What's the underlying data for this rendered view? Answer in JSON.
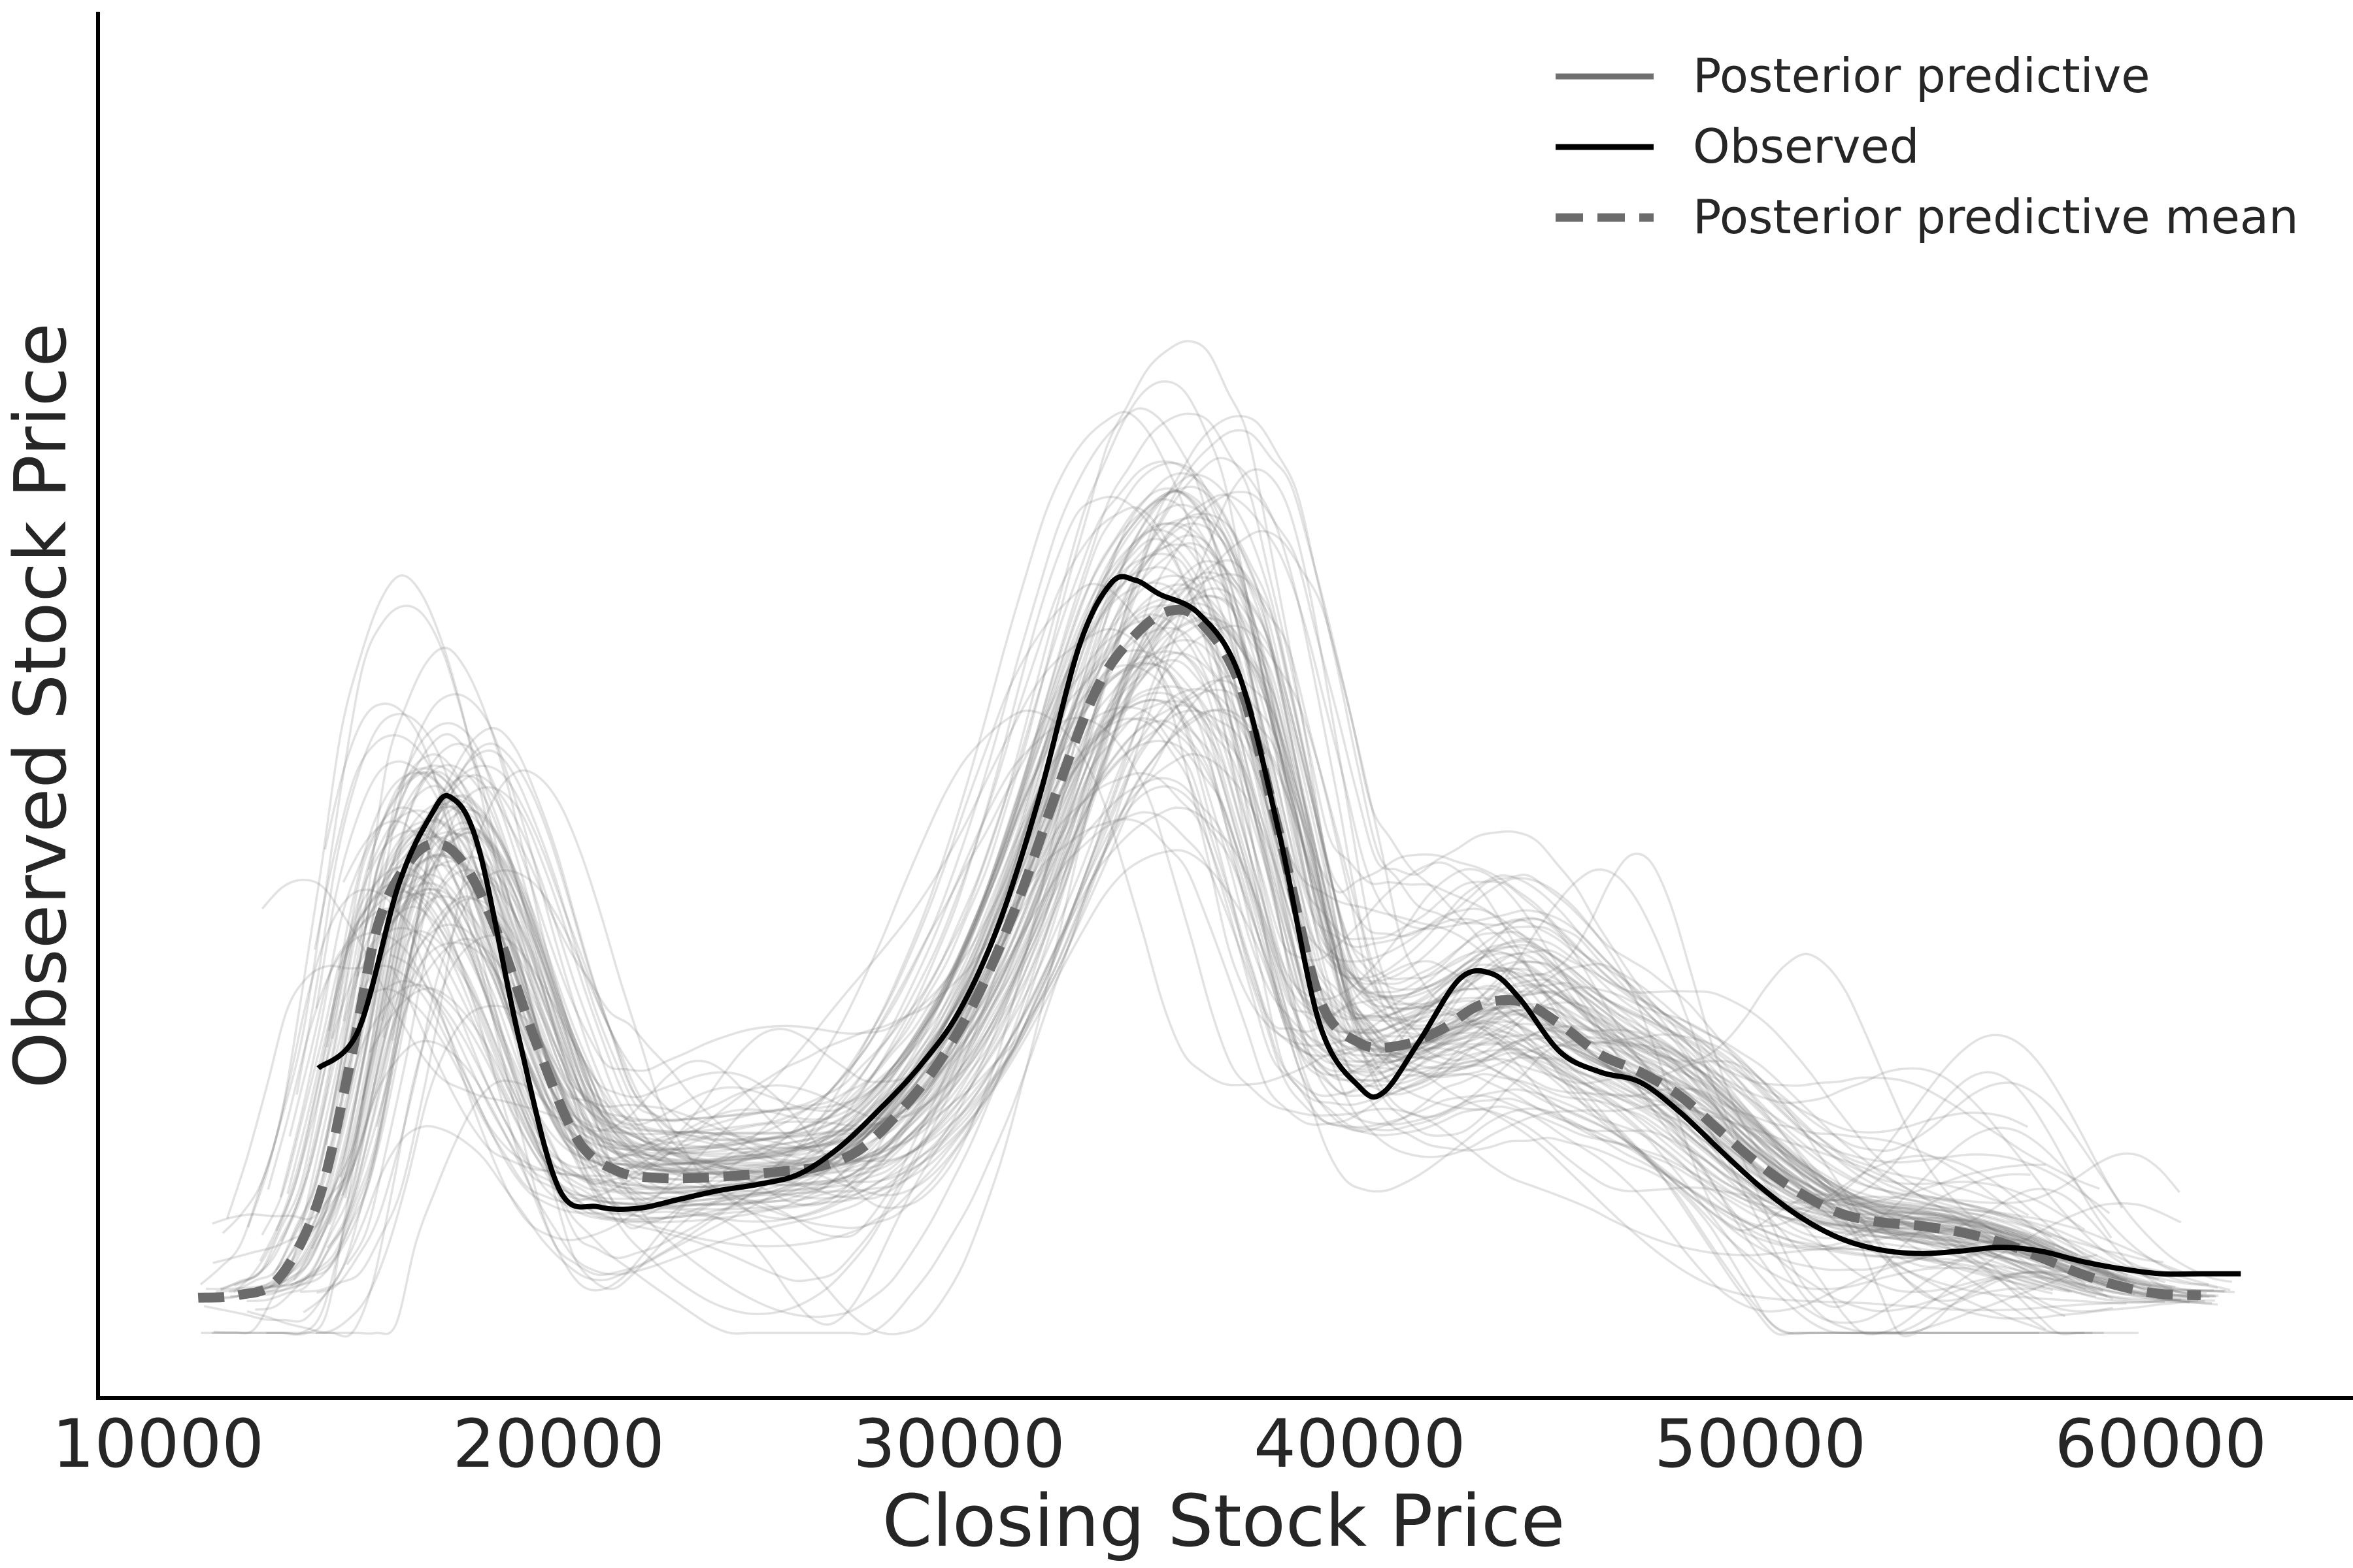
{
  "chart_data": {
    "type": "line",
    "title": "",
    "xlabel": "Closing Stock Price",
    "ylabel": "Observed Stock Price",
    "xlim": [
      8500,
      64800
    ],
    "ylim": [
      0,
      1.0
    ],
    "x_ticks": [
      10000,
      20000,
      30000,
      40000,
      50000,
      60000
    ],
    "x_tick_labels": [
      "10000",
      "20000",
      "30000",
      "40000",
      "50000",
      "60000"
    ],
    "y_ticks_shown": false,
    "grid": false,
    "legend_position": "top-right",
    "legend": [
      {
        "label": "Posterior predictive",
        "style": "solid",
        "color": "#707070"
      },
      {
        "label": "Observed",
        "style": "solid",
        "color": "#000000"
      },
      {
        "label": "Posterior predictive mean",
        "style": "dashed",
        "color": "#6b6b6b"
      }
    ],
    "series": [
      {
        "name": "Observed",
        "color": "#000000",
        "x": [
          14000,
          15000,
          16000,
          16800,
          17300,
          18000,
          19000,
          20000,
          21000,
          22000,
          23000,
          24000,
          25000,
          26000,
          27000,
          28000,
          29000,
          30000,
          31000,
          32000,
          33000,
          33800,
          34400,
          35000,
          36000,
          37000,
          38000,
          39000,
          40000,
          40600,
          41500,
          42500,
          43300,
          44000,
          45000,
          46000,
          47000,
          48000,
          49000,
          50000,
          51000,
          52000,
          53000,
          54000,
          55000,
          56000,
          57000,
          58000,
          59000,
          60000,
          61000,
          62000
        ],
        "y": [
          0.215,
          0.245,
          0.36,
          0.415,
          0.43,
          0.39,
          0.24,
          0.12,
          0.105,
          0.104,
          0.111,
          0.118,
          0.123,
          0.131,
          0.152,
          0.182,
          0.216,
          0.26,
          0.33,
          0.43,
          0.55,
          0.6,
          0.602,
          0.591,
          0.575,
          0.526,
          0.4,
          0.25,
          0.2,
          0.196,
          0.237,
          0.286,
          0.29,
          0.27,
          0.228,
          0.212,
          0.204,
          0.18,
          0.15,
          0.121,
          0.097,
          0.08,
          0.071,
          0.068,
          0.07,
          0.073,
          0.07,
          0.062,
          0.056,
          0.052,
          0.052,
          0.052
        ]
      },
      {
        "name": "Posterior predictive mean",
        "color": "#6b6b6b",
        "x": [
          11000,
          12000,
          13000,
          14000,
          14800,
          15500,
          16300,
          17000,
          17700,
          18500,
          19500,
          20500,
          21500,
          22500,
          23500,
          24500,
          25500,
          26500,
          27500,
          28500,
          29500,
          30500,
          31500,
          32500,
          33500,
          34500,
          35300,
          36000,
          37000,
          38000,
          39000,
          40000,
          41000,
          42000,
          43000,
          44000,
          45000,
          46000,
          47000,
          48000,
          49000,
          50000,
          51000,
          52000,
          53000,
          54000,
          55000,
          56000,
          57000,
          58000,
          59000,
          60000,
          61000
        ],
        "y": [
          0.033,
          0.035,
          0.048,
          0.11,
          0.22,
          0.33,
          0.38,
          0.393,
          0.374,
          0.32,
          0.23,
          0.157,
          0.133,
          0.128,
          0.128,
          0.13,
          0.133,
          0.137,
          0.15,
          0.18,
          0.22,
          0.275,
          0.35,
          0.44,
          0.52,
          0.562,
          0.578,
          0.57,
          0.52,
          0.4,
          0.27,
          0.235,
          0.233,
          0.245,
          0.265,
          0.268,
          0.25,
          0.226,
          0.212,
          0.193,
          0.165,
          0.138,
          0.116,
          0.1,
          0.093,
          0.09,
          0.085,
          0.077,
          0.065,
          0.052,
          0.042,
          0.036,
          0.035
        ]
      }
    ],
    "posterior_predictive_samples": 100
  }
}
